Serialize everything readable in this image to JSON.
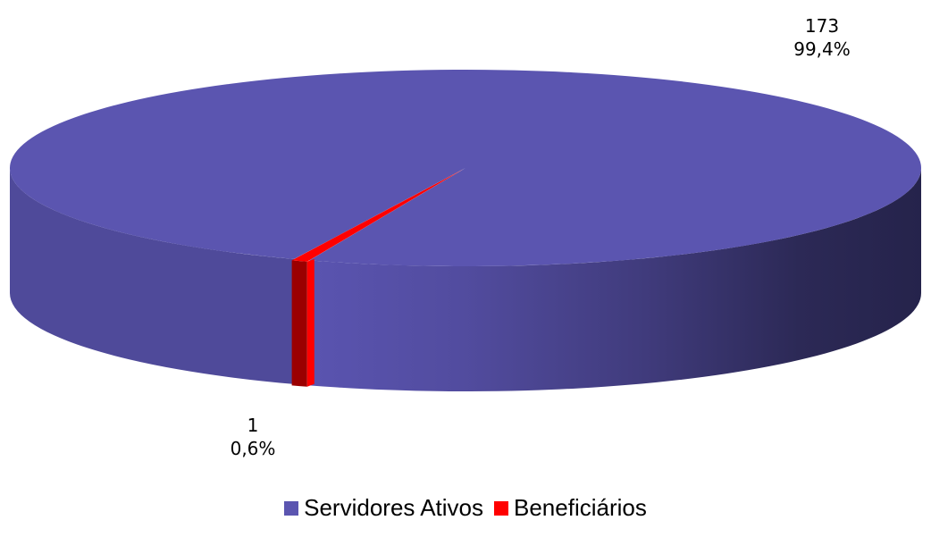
{
  "chart_data": {
    "type": "pie",
    "title": "",
    "three_d": true,
    "legend_position": "bottom",
    "series": [
      {
        "name": "Servidores Ativos",
        "value": 173,
        "percent_label": "99,4%",
        "color": "#5B55B0"
      },
      {
        "name": "Beneficiários",
        "value": 1,
        "percent_label": "0,6%",
        "color": "#FF0000"
      }
    ]
  }
}
